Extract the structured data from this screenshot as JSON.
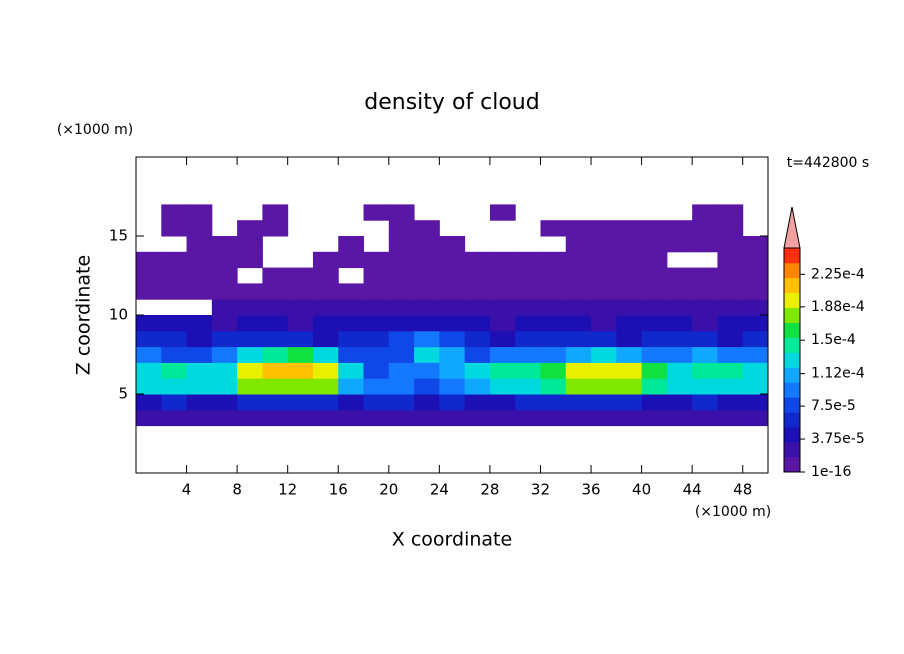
{
  "chart_data": {
    "type": "contour",
    "title": "density of cloud",
    "x_label": "X coordinate",
    "y_label": "Z coordinate",
    "x_unit": "(×1000 m)",
    "y_unit": "(×1000 m)",
    "time_label": "t=442800 s",
    "xlim": [
      0,
      50
    ],
    "ylim": [
      0,
      20
    ],
    "xticks": [
      4,
      8,
      12,
      16,
      20,
      24,
      28,
      32,
      36,
      40,
      44,
      48
    ],
    "yticks": [
      5,
      10,
      15
    ],
    "x": [
      1,
      3,
      5,
      7,
      9,
      11,
      13,
      15,
      17,
      19,
      21,
      23,
      25,
      27,
      29,
      31,
      33,
      35,
      37,
      39,
      41,
      43,
      45,
      47,
      49
    ],
    "y": [
      3.5,
      4.5,
      5.5,
      6.5,
      7.5,
      8.5,
      9.5,
      10.5,
      11.5,
      12.5,
      13.5,
      14.5,
      15.5,
      16.5
    ],
    "z": [
      [
        2e-05,
        2e-05,
        2e-05,
        2e-05,
        2e-05,
        2e-05,
        2e-05,
        2e-05,
        2e-05,
        2e-05,
        2e-05,
        2e-05,
        2e-05,
        2e-05,
        2e-05,
        2e-05,
        2e-05,
        2e-05,
        2e-05,
        2e-05,
        2e-05,
        2e-05,
        2e-05,
        2e-05,
        2e-05
      ],
      [
        5e-05,
        6e-05,
        5e-05,
        5e-05,
        6e-05,
        6e-05,
        6e-05,
        6e-05,
        5e-05,
        6e-05,
        6e-05,
        5e-05,
        6e-05,
        5e-05,
        5e-05,
        6e-05,
        6e-05,
        6e-05,
        6e-05,
        6e-05,
        5e-05,
        5e-05,
        6e-05,
        5e-05,
        5e-05
      ],
      [
        0.00012,
        0.00013,
        0.00012,
        0.00013,
        0.00017,
        0.00018,
        0.00018,
        0.00017,
        0.00011,
        9e-05,
        0.0001,
        8e-05,
        0.0001,
        0.00011,
        0.00013,
        0.00013,
        0.00014,
        0.00017,
        0.00018,
        0.00017,
        0.00015,
        0.00012,
        0.00013,
        0.00013,
        0.00012
      ],
      [
        0.00013,
        0.00014,
        0.00012,
        0.00013,
        0.00019,
        0.00021,
        0.00022,
        0.0002,
        0.00012,
        8e-05,
        9e-05,
        0.0001,
        0.00011,
        0.00012,
        0.00014,
        0.00015,
        0.00016,
        0.00019,
        0.0002,
        0.00019,
        0.00016,
        0.00013,
        0.00015,
        0.00014,
        0.00013
      ],
      [
        9e-05,
        8e-05,
        8e-05,
        9e-05,
        0.00012,
        0.00015,
        0.00016,
        0.00013,
        8e-05,
        7e-05,
        8e-05,
        0.00012,
        0.00011,
        8e-05,
        9e-05,
        9e-05,
        9e-05,
        0.00011,
        0.00012,
        0.00011,
        9e-05,
        9e-05,
        0.00011,
        0.0001,
        9e-05
      ],
      [
        6e-05,
        6e-05,
        5e-05,
        6e-05,
        6e-05,
        6e-05,
        6e-05,
        5e-05,
        6e-05,
        6e-05,
        7e-05,
        9e-05,
        7e-05,
        6e-05,
        5e-05,
        6e-05,
        6e-05,
        6e-05,
        6e-05,
        5e-05,
        6e-05,
        6e-05,
        6e-05,
        5e-05,
        6e-05
      ],
      [
        4e-05,
        4e-05,
        4e-05,
        3e-05,
        4e-05,
        4e-05,
        3e-05,
        4e-05,
        4e-05,
        4e-05,
        5e-05,
        5e-05,
        4e-05,
        4e-05,
        3e-05,
        4e-05,
        4e-05,
        4e-05,
        3e-05,
        4e-05,
        4e-05,
        4e-05,
        3e-05,
        4e-05,
        4e-05
      ],
      [
        null,
        null,
        null,
        2e-05,
        2e-05,
        2e-05,
        2e-05,
        2e-05,
        2e-05,
        2e-05,
        2e-05,
        3e-05,
        2e-05,
        2e-05,
        2e-05,
        2e-05,
        2e-05,
        2e-05,
        2e-05,
        2e-05,
        2e-05,
        2e-05,
        2e-05,
        2e-05,
        2e-05
      ],
      [
        1e-05,
        1e-05,
        1e-05,
        1e-05,
        1e-05,
        1e-05,
        1e-05,
        1e-05,
        1e-05,
        1e-05,
        1e-05,
        1e-05,
        1e-05,
        1e-05,
        1e-05,
        1e-05,
        1e-05,
        1e-05,
        1e-05,
        1e-05,
        1e-05,
        1e-05,
        1e-05,
        1e-05,
        1e-05
      ],
      [
        5e-06,
        5e-06,
        5e-06,
        5e-06,
        null,
        5e-06,
        5e-06,
        5e-06,
        null,
        5e-06,
        5e-06,
        5e-06,
        5e-06,
        5e-06,
        5e-06,
        5e-06,
        5e-06,
        5e-06,
        5e-06,
        5e-06,
        5e-06,
        5e-06,
        5e-06,
        5e-06,
        5e-06
      ],
      [
        1e-06,
        1e-06,
        1e-06,
        1e-06,
        1e-06,
        null,
        null,
        1e-06,
        1e-06,
        1e-06,
        1e-06,
        1e-06,
        1e-06,
        1e-06,
        1e-06,
        1e-06,
        1e-06,
        1e-06,
        1e-06,
        1e-06,
        1e-06,
        null,
        null,
        1e-06,
        1e-06
      ],
      [
        null,
        null,
        1e-06,
        1e-06,
        1e-06,
        null,
        null,
        null,
        1e-06,
        null,
        1e-06,
        1e-06,
        1e-06,
        null,
        null,
        null,
        null,
        1e-06,
        1e-06,
        1e-06,
        1e-06,
        1e-06,
        1e-06,
        1e-06,
        1e-06
      ],
      [
        null,
        1e-06,
        1e-06,
        null,
        1e-06,
        1e-06,
        null,
        null,
        null,
        null,
        1e-06,
        1e-06,
        null,
        null,
        null,
        null,
        1e-06,
        1e-06,
        1e-06,
        1e-06,
        1e-06,
        1e-06,
        1e-06,
        1e-06,
        null
      ],
      [
        null,
        1e-06,
        1e-06,
        null,
        null,
        1e-06,
        null,
        null,
        null,
        1e-06,
        1e-06,
        null,
        null,
        null,
        1e-06,
        null,
        null,
        null,
        null,
        null,
        null,
        null,
        1e-06,
        1e-06,
        null
      ]
    ],
    "colorbar": {
      "lim": [
        0,
        0.000255
      ],
      "ticks": [
        1e-16,
        {
          "value": 3.75e-05,
          "label": "3.75e-5"
        },
        {
          "value": 7.5e-05,
          "label": "7.5e-5"
        },
        {
          "value": 0.000112,
          "label": "1.12e-4"
        },
        {
          "value": 0.00015,
          "label": "1.5e-4"
        },
        {
          "value": 0.000188,
          "label": "1.88e-4"
        },
        {
          "value": 0.000225,
          "label": "2.25e-4"
        }
      ],
      "colors": [
        "#5a16a4",
        "#3a10a8",
        "#1c10b4",
        "#1028cc",
        "#1048e8",
        "#1478ff",
        "#10a8ff",
        "#00d8e0",
        "#00e89a",
        "#10e040",
        "#80e800",
        "#e8f000",
        "#ffc000",
        "#ff8400",
        "#ff3010"
      ],
      "over_color": "#f4a0a0"
    }
  }
}
